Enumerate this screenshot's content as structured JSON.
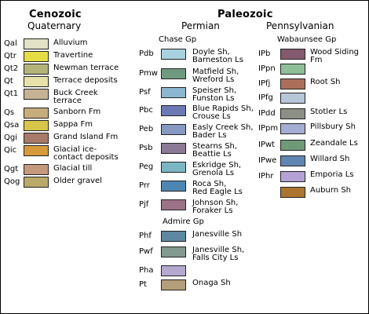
{
  "eras": [
    {
      "label": "Cenozoic"
    },
    {
      "label": "Paleozoic"
    }
  ],
  "periods": {
    "quaternary": "Quaternary",
    "permian": "Permian",
    "pennsylvanian": "Pennsylvanian"
  },
  "groups": {
    "chase": "Chase Gp",
    "admire": "Admire Gp",
    "wabaunsee": "Wabaunsee Gp"
  },
  "quaternary": [
    {
      "symbol": "Qal",
      "name": "Alluvium",
      "color": "#e3e1c6"
    },
    {
      "symbol": "Qtr",
      "name": "Travertine",
      "color": "#e6dd45"
    },
    {
      "symbol": "Qt2",
      "name": "Newman terrace",
      "color": "#b4b37a"
    },
    {
      "symbol": "Qt",
      "name": "Terrace deposits",
      "color": "#e7e2a8"
    },
    {
      "symbol": "Qt1",
      "name": "Buck Creek\nterrace",
      "color": "#c5b394"
    },
    {
      "symbol": "Qs",
      "name": "Sanborn Fm",
      "color": "#c8ad7c"
    },
    {
      "symbol": "Qsa",
      "name": "Sappa Fm",
      "color": "#d8c64a"
    },
    {
      "symbol": "Qgi",
      "name": "Grand Island Fm",
      "color": "#a77a6a"
    },
    {
      "symbol": "Qic",
      "name": "Glacial ice-\ncontact deposits",
      "color": "#d69a3b"
    },
    {
      "symbol": "Qgt",
      "name": "Glacial till",
      "color": "#c59a7c"
    },
    {
      "symbol": "Qog",
      "name": "Older gravel",
      "color": "#b9aa6a"
    }
  ],
  "permian_chase": [
    {
      "symbol": "Pdb",
      "name": "Doyle Sh,\nBarneston Ls",
      "color": "#a9d2e0"
    },
    {
      "symbol": "Pmw",
      "name": "Matfield Sh,\nWreford Ls",
      "color": "#6f9a7f"
    },
    {
      "symbol": "Psf",
      "name": "Speiser Sh,\nFunston Ls",
      "color": "#8cb5ce"
    },
    {
      "symbol": "Pbc",
      "name": "Blue Rapids Sh,\nCrouse Ls",
      "color": "#6d79b4"
    },
    {
      "symbol": "Peb",
      "name": "Easly Creek Sh,\nBader Ls",
      "color": "#8799c2"
    },
    {
      "symbol": "Psb",
      "name": "Stearns Sh,\nBeattie Ls",
      "color": "#8a7a96"
    },
    {
      "symbol": "Peg",
      "name": "Eskridge Sh,\nGrenola Ls",
      "color": "#7ab6c2"
    },
    {
      "symbol": "Prr",
      "name": "Roca Sh,\nRed Eagle Ls",
      "color": "#4e86b2"
    },
    {
      "symbol": "Pjf",
      "name": "Johnson Sh,\nForaker Ls",
      "color": "#9a7388"
    }
  ],
  "permian_admire": [
    {
      "symbol": "Phf",
      "name": "Janesville Sh",
      "color": "#5e87a0"
    },
    {
      "symbol": "Pwf",
      "name": "Janesville Sh,\nFalls City Ls",
      "color": "#829a8f"
    },
    {
      "symbol": "Pha",
      "name": "",
      "color": "#b4a8cf"
    },
    {
      "symbol": "Pt",
      "name": "Onaga Sh",
      "color": "#b59e7a"
    }
  ],
  "pennsylvanian": [
    {
      "symbol": "IPb",
      "name": "Wood Siding\nFm",
      "color": "#835a6e"
    },
    {
      "symbol": "IPpn",
      "name": "",
      "color": "#8ebf98"
    },
    {
      "symbol": "IPfj",
      "name": "Root Sh",
      "color": "#ac6e58"
    },
    {
      "symbol": "IPfg",
      "name": "",
      "color": "#b8c6da"
    },
    {
      "symbol": "IPdd",
      "name": "Stotler Ls",
      "color": "#8c8f85"
    },
    {
      "symbol": "IPpm",
      "name": "Pillsbury Sh",
      "color": "#a4aed4"
    },
    {
      "symbol": "IPwt",
      "name": "Zeandale Ls",
      "color": "#6f9a78"
    },
    {
      "symbol": "IPwe",
      "name": "Willard Sh",
      "color": "#5f86b2"
    },
    {
      "symbol": "IPhr",
      "name": "Emporia Ls",
      "color": "#b4a2d6"
    },
    {
      "symbol": "",
      "name": "Auburn Sh",
      "color": "#ab752f"
    }
  ]
}
